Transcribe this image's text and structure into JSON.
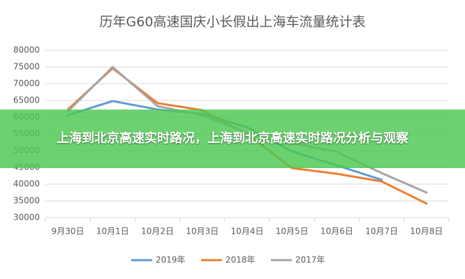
{
  "chart_data": {
    "type": "line",
    "title": "历年G60高速国庆小长假出上海车流量统计表",
    "categories": [
      "9月30日",
      "10月1日",
      "10月2日",
      "10月3日",
      "10月4日",
      "10月5日",
      "10月6日",
      "10月7日",
      "10月8日"
    ],
    "series": [
      {
        "name": "2019年",
        "color": "#5b9bd5",
        "values": [
          60600,
          64800,
          62300,
          61000,
          57000,
          49800,
          45600,
          41300,
          null
        ]
      },
      {
        "name": "2018年",
        "color": "#ed7d31",
        "values": [
          62300,
          74600,
          64200,
          62100,
          55000,
          44800,
          43100,
          40800,
          34200
        ]
      },
      {
        "name": "2017年",
        "color": "#a5a5a5",
        "values": [
          61700,
          75000,
          63300,
          60600,
          55400,
          52300,
          49600,
          43300,
          37500
        ]
      }
    ],
    "ylim": [
      30000,
      80000
    ],
    "yticks": [
      30000,
      35000,
      40000,
      45000,
      50000,
      55000,
      60000,
      65000,
      70000,
      75000,
      80000
    ],
    "grid": true,
    "legend": "bottom"
  },
  "banner": {
    "text": "上海到北京高速实时路况，上海到北京高速实时路况分析与观察"
  }
}
